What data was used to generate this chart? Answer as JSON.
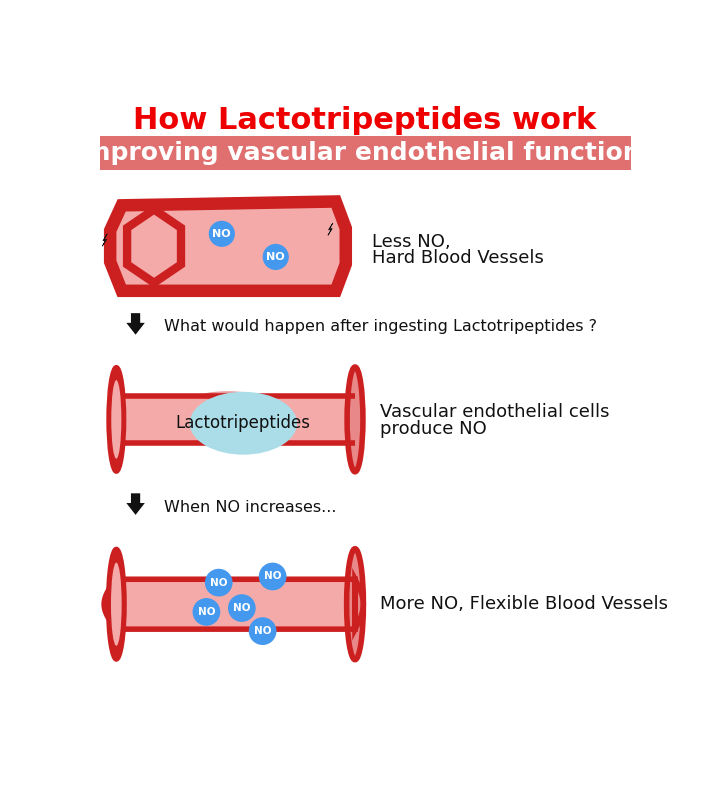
{
  "title": "How Lactotripeptides work",
  "subtitle": "Improving vascular endothelial functions",
  "title_color": "#EE0000",
  "subtitle_bg_color": "#E07070",
  "subtitle_text_color": "#FFFFFF",
  "bg_color": "#FFFFFF",
  "vessel_outer_color": "#CC2020",
  "vessel_inner_color": "#F5AAAA",
  "vessel_mid_color": "#E88888",
  "no_bubble_color": "#4499EE",
  "no_text_color": "#FFFFFF",
  "cyan_circle_color": "#AADDE8",
  "arrow_color": "#111111",
  "text_color": "#111111",
  "arrow1_text": "What would happen after ingesting Lactotripeptides ?",
  "arrow2_text": "When NO increases...",
  "vessel1_label_line1": "Less NO,",
  "vessel1_label_line2": "Hard Blood Vessels",
  "vessel2_label_line1": "Vascular endothelial cells",
  "vessel2_label_line2": "produce NO",
  "vessel2_inner_text": "Lactotripeptides",
  "vessel3_label": "More NO, Flexible Blood Vessels"
}
